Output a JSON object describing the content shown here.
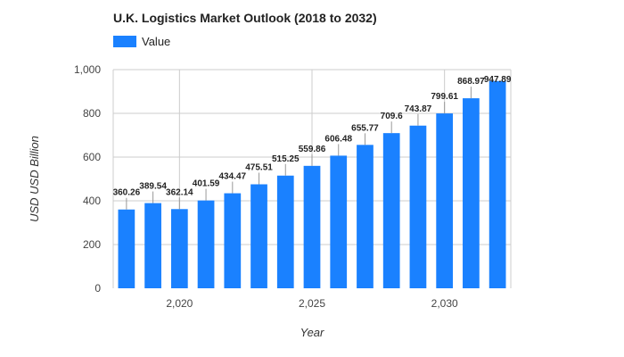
{
  "chart_data": {
    "type": "bar",
    "title": "U.K.  Logistics Market Outlook (2018 to 2032)",
    "xlabel": "Year",
    "ylabel": "USD USD Billion",
    "legend": {
      "position": "top-left",
      "entries": [
        "Value"
      ]
    },
    "x": [
      2018,
      2019,
      2020,
      2021,
      2022,
      2023,
      2024,
      2025,
      2026,
      2027,
      2028,
      2029,
      2030,
      2031,
      2032
    ],
    "series": [
      {
        "name": "Value",
        "color": "#1a81ff",
        "values": [
          360.26,
          389.54,
          362.14,
          401.59,
          434.47,
          475.51,
          515.25,
          559.86,
          606.48,
          655.77,
          709.6,
          743.87,
          799.61,
          868.97,
          947.89
        ],
        "labels": [
          "360.26",
          "389.54",
          "362.14",
          "401.59",
          "434.47",
          "475.51",
          "515.25",
          "559.86",
          "606.48",
          "655.77",
          "709.6",
          "743.87",
          "799.61",
          "868.97",
          "947.89"
        ]
      }
    ],
    "ylim": [
      0,
      1000
    ],
    "yticks": [
      0,
      200,
      400,
      600,
      800,
      1000
    ],
    "ytick_labels": [
      "0",
      "200",
      "400",
      "600",
      "800",
      "1,000"
    ],
    "xticks": [
      2020,
      2025,
      2030
    ],
    "xtick_labels": [
      "2,020",
      "2,025",
      "2,030"
    ],
    "grid": true
  }
}
